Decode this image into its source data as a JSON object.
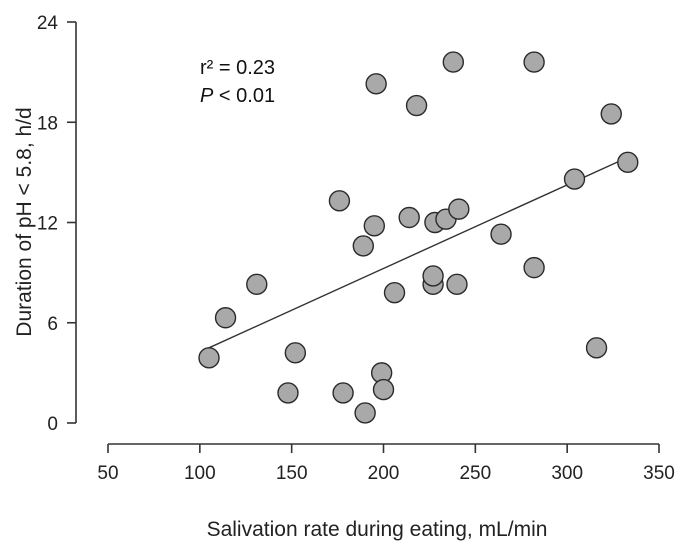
{
  "chart_data": {
    "type": "scatter",
    "title": "",
    "xlabel": "Salivation rate during eating,  mL/min",
    "ylabel": "Duration of pH < 5.8,  h/d",
    "xlim": [
      50,
      350
    ],
    "ylim": [
      0,
      24
    ],
    "x_ticks": [
      50,
      100,
      150,
      200,
      250,
      300,
      350
    ],
    "y_ticks": [
      0,
      6,
      12,
      18,
      24
    ],
    "grid": false,
    "annotation": {
      "r2_text": "r² = 0.23",
      "p_symbol": "P",
      "p_rest": " < 0.01"
    },
    "trendline": {
      "x": [
        105,
        333
      ],
      "y": [
        4.5,
        15.9
      ]
    },
    "points": [
      {
        "x": 105,
        "y": 3.9
      },
      {
        "x": 114,
        "y": 6.3
      },
      {
        "x": 131,
        "y": 8.3
      },
      {
        "x": 148,
        "y": 1.8
      },
      {
        "x": 152,
        "y": 4.2
      },
      {
        "x": 176,
        "y": 13.3
      },
      {
        "x": 178,
        "y": 1.8
      },
      {
        "x": 189,
        "y": 10.6
      },
      {
        "x": 190,
        "y": 0.6
      },
      {
        "x": 195,
        "y": 11.8
      },
      {
        "x": 196,
        "y": 20.3
      },
      {
        "x": 199,
        "y": 3.0
      },
      {
        "x": 200,
        "y": 2.0
      },
      {
        "x": 206,
        "y": 7.8
      },
      {
        "x": 214,
        "y": 12.3
      },
      {
        "x": 218,
        "y": 19.0
      },
      {
        "x": 227,
        "y": 8.3
      },
      {
        "x": 227,
        "y": 8.8
      },
      {
        "x": 228,
        "y": 12.0
      },
      {
        "x": 234,
        "y": 12.2
      },
      {
        "x": 238,
        "y": 21.6
      },
      {
        "x": 240,
        "y": 8.3
      },
      {
        "x": 241,
        "y": 12.8
      },
      {
        "x": 264,
        "y": 11.3
      },
      {
        "x": 282,
        "y": 21.6
      },
      {
        "x": 282,
        "y": 9.3
      },
      {
        "x": 304,
        "y": 14.6
      },
      {
        "x": 316,
        "y": 4.5
      },
      {
        "x": 324,
        "y": 18.5
      },
      {
        "x": 333,
        "y": 15.6
      }
    ]
  }
}
